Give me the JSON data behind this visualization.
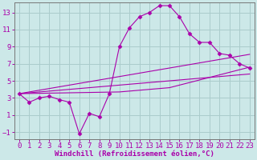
{
  "xlabel": "Windchill (Refroidissement éolien,°C)",
  "bg_color": "#cce8e8",
  "grid_color": "#aacccc",
  "line_color": "#aa00aa",
  "x_data": [
    0,
    1,
    2,
    3,
    4,
    5,
    6,
    7,
    8,
    9,
    10,
    11,
    12,
    13,
    14,
    15,
    16,
    17,
    18,
    19,
    20,
    21,
    22,
    23
  ],
  "y_main": [
    3.5,
    2.5,
    3.0,
    3.2,
    2.8,
    2.5,
    -1.2,
    1.2,
    0.8,
    3.5,
    9.0,
    11.2,
    12.5,
    13.0,
    13.8,
    13.8,
    12.5,
    10.5,
    9.5,
    9.5,
    8.2,
    8.0,
    7.0,
    6.5
  ],
  "y_line1": [
    3.5,
    3.7,
    3.9,
    4.1,
    4.3,
    4.5,
    4.7,
    4.9,
    5.1,
    5.3,
    5.5,
    5.7,
    5.9,
    6.1,
    6.3,
    6.5,
    6.7,
    6.9,
    7.1,
    7.3,
    7.5,
    7.7,
    7.9,
    8.1
  ],
  "y_line2": [
    3.5,
    3.6,
    3.7,
    3.8,
    3.9,
    4.0,
    4.1,
    4.2,
    4.3,
    4.4,
    4.5,
    4.6,
    4.7,
    4.8,
    4.9,
    5.0,
    5.1,
    5.2,
    5.3,
    5.4,
    5.5,
    5.6,
    5.7,
    5.8
  ],
  "y_line3": [
    3.5,
    3.52,
    3.54,
    3.56,
    3.58,
    3.6,
    3.62,
    3.64,
    3.66,
    3.68,
    3.7,
    3.8,
    3.9,
    4.0,
    4.1,
    4.2,
    4.5,
    4.8,
    5.1,
    5.4,
    5.7,
    6.0,
    6.3,
    6.6
  ],
  "xlim": [
    -0.5,
    23.5
  ],
  "ylim": [
    -1.8,
    14.2
  ],
  "yticks": [
    -1,
    1,
    3,
    5,
    7,
    9,
    11,
    13
  ],
  "xticks": [
    0,
    1,
    2,
    3,
    4,
    5,
    6,
    7,
    8,
    9,
    10,
    11,
    12,
    13,
    14,
    15,
    16,
    17,
    18,
    19,
    20,
    21,
    22,
    23
  ],
  "xlabel_fontsize": 6.5,
  "tick_fontsize": 6.5,
  "marker": "D",
  "marker_size": 2.5,
  "linewidth": 0.8
}
